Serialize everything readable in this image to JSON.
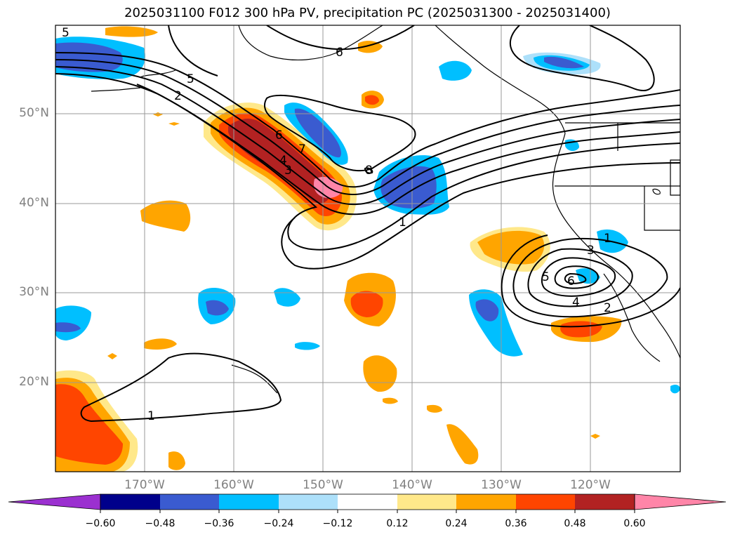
{
  "title": "2025031100 F012 300 hPa PV, precipitation PC (2025031300 - 2025031400)",
  "lat_labels": [
    "50°N",
    "40°N",
    "30°N",
    "20°N"
  ],
  "lon_labels": [
    "170°W",
    "160°W",
    "150°W",
    "140°W",
    "130°W",
    "120°W"
  ],
  "colorbar": {
    "ticks": [
      "−0.60",
      "−0.48",
      "−0.36",
      "−0.24",
      "−0.12",
      "0.12",
      "0.24",
      "0.36",
      "0.48",
      "0.60"
    ],
    "colors": [
      "#9b30d0",
      "#00008b",
      "#3a5bd0",
      "#00bfff",
      "#ade0fa",
      "#ffffff",
      "#ffe88a",
      "#ffa500",
      "#ff4500",
      "#b22222",
      "#ff85a8"
    ]
  },
  "contour_labels": [
    "5",
    "6",
    "5",
    "2",
    "6",
    "7",
    "4",
    "3",
    "8",
    "1",
    "1",
    "3",
    "5",
    "6",
    "4",
    "2",
    "1"
  ],
  "colors": {
    "pos_low": "#ffe88a",
    "pos_mid": "#ffa500",
    "pos_high": "#ff4500",
    "pos_max": "#b22222",
    "pos_peak": "#ff85a8",
    "neg_low": "#ade0fa",
    "neg_mid": "#00bfff",
    "neg_high": "#3a5bd0"
  }
}
